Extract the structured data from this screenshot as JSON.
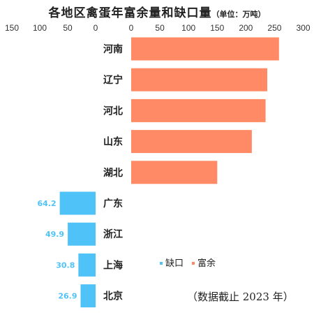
{
  "title": "各地区禽蛋年富余量和缺口量",
  "unit": "（单位：万吨）",
  "note": "（数据截止 2023 年）",
  "colors": {
    "deficit": "#4fc3f7",
    "surplus": "#ff8a65",
    "axis_text": "#333333",
    "category_text": "#222222"
  },
  "chart_data": {
    "type": "bar",
    "orientation": "horizontal",
    "categories": [
      "河南",
      "辽宁",
      "河北",
      "山东",
      "湖北",
      "广东",
      "浙江",
      "上海",
      "北京"
    ],
    "series": [
      {
        "name": "缺口",
        "values": [
          null,
          null,
          null,
          null,
          null,
          64.2,
          49.9,
          30.8,
          26.9
        ]
      },
      {
        "name": "富余",
        "values": [
          257.8,
          237.3,
          234.4,
          210.4,
          150.1,
          null,
          null,
          null,
          null
        ]
      }
    ],
    "deficit_axis": {
      "ticks": [
        "150",
        "100",
        "50",
        "0"
      ],
      "xlim": [
        150,
        0
      ]
    },
    "surplus_axis": {
      "ticks": [
        "0",
        "50",
        "100",
        "150",
        "200",
        "250",
        "300"
      ],
      "xlim": [
        0,
        300
      ]
    },
    "legend": {
      "position": "bottom-right",
      "items": [
        "缺口",
        "富余"
      ]
    },
    "grid": false
  }
}
